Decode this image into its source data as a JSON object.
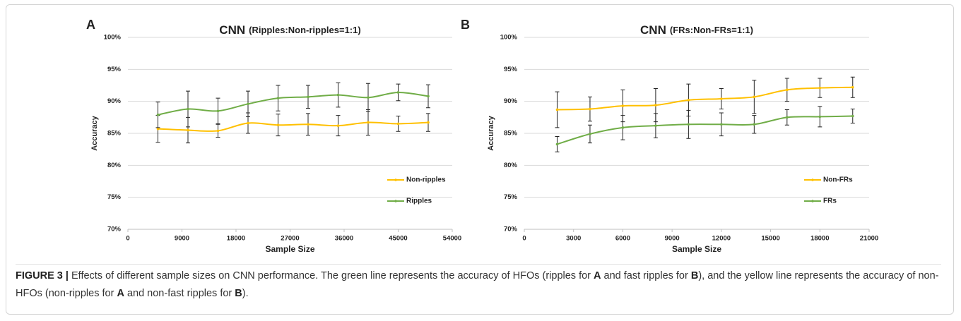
{
  "chart_data": [
    {
      "type": "line",
      "panel_label": "A",
      "title": "CNN",
      "subtitle": "(Ripples:Non-ripples=1:1)",
      "x_label": "Sample Size",
      "y_label": "Accuracy",
      "x": [
        5000,
        10000,
        15000,
        20000,
        25000,
        30000,
        35000,
        40000,
        45000,
        50000
      ],
      "series": [
        {
          "name": "Non-ripples",
          "color": "#ffc000",
          "values": [
            85.7,
            85.5,
            85.4,
            86.6,
            86.3,
            86.4,
            86.2,
            86.7,
            86.5,
            86.7
          ],
          "errors": [
            2.1,
            2.0,
            1.0,
            1.6,
            1.7,
            1.7,
            1.6,
            2.0,
            1.2,
            1.4
          ]
        },
        {
          "name": "Ripples",
          "color": "#70ad47",
          "values": [
            87.9,
            88.8,
            88.5,
            89.6,
            90.5,
            90.7,
            91.0,
            90.6,
            91.4,
            90.8
          ],
          "errors": [
            2.0,
            2.8,
            2.0,
            2.0,
            2.0,
            1.8,
            1.9,
            2.2,
            1.3,
            1.8
          ]
        }
      ],
      "xlim": [
        0,
        54000
      ],
      "xticks": [
        0,
        9000,
        18000,
        27000,
        36000,
        45000,
        54000
      ],
      "ylim": [
        70,
        100
      ],
      "yticks": [
        {
          "value": 70,
          "label": "70%"
        },
        {
          "value": 75,
          "label": "75%"
        },
        {
          "value": 80,
          "label": "80%"
        },
        {
          "value": 85,
          "label": "85%"
        },
        {
          "value": 90,
          "label": "90%"
        },
        {
          "value": 95,
          "label": "95%"
        },
        {
          "value": 100,
          "label": "100%"
        }
      ],
      "grid": true,
      "legend_position": "lower right"
    },
    {
      "type": "line",
      "panel_label": "B",
      "title": "CNN",
      "subtitle": "(FRs:Non-FRs=1:1)",
      "x_label": "Sample Size",
      "y_label": "Accuracy",
      "x": [
        2000,
        4000,
        6000,
        8000,
        10000,
        12000,
        14000,
        16000,
        18000,
        20000
      ],
      "series": [
        {
          "name": "Non-FRs",
          "color": "#ffc000",
          "values": [
            88.7,
            88.8,
            89.3,
            89.4,
            90.2,
            90.4,
            90.7,
            91.8,
            92.1,
            92.2
          ],
          "errors": [
            2.8,
            1.9,
            2.5,
            2.6,
            2.5,
            1.6,
            2.6,
            1.8,
            1.5,
            1.6
          ]
        },
        {
          "name": "FRs",
          "color": "#70ad47",
          "values": [
            83.3,
            84.9,
            85.9,
            86.2,
            86.4,
            86.4,
            86.4,
            87.5,
            87.6,
            87.7
          ],
          "errors": [
            1.2,
            1.4,
            1.9,
            1.9,
            2.2,
            1.8,
            1.4,
            1.2,
            1.6,
            1.1
          ]
        }
      ],
      "xlim": [
        0,
        21000
      ],
      "xticks": [
        0,
        3000,
        6000,
        9000,
        12000,
        15000,
        18000,
        21000
      ],
      "ylim": [
        70,
        100
      ],
      "yticks": [
        {
          "value": 70,
          "label": "70%"
        },
        {
          "value": 75,
          "label": "75%"
        },
        {
          "value": 80,
          "label": "80%"
        },
        {
          "value": 85,
          "label": "85%"
        },
        {
          "value": 90,
          "label": "90%"
        },
        {
          "value": 95,
          "label": "95%"
        },
        {
          "value": 100,
          "label": "100%"
        }
      ],
      "grid": true,
      "legend_position": "lower right"
    }
  ],
  "caption": {
    "label": "FIGURE 3 |",
    "segments": [
      "Effects of different sample sizes on CNN performance. The green line represents the accuracy of HFOs (ripples for ",
      "A",
      " and fast ripples for ",
      "B",
      "), and the yellow line represents the accuracy of non-HFOs (non-ripples for ",
      "A",
      " and non-fast ripples for ",
      "B",
      ")."
    ]
  }
}
